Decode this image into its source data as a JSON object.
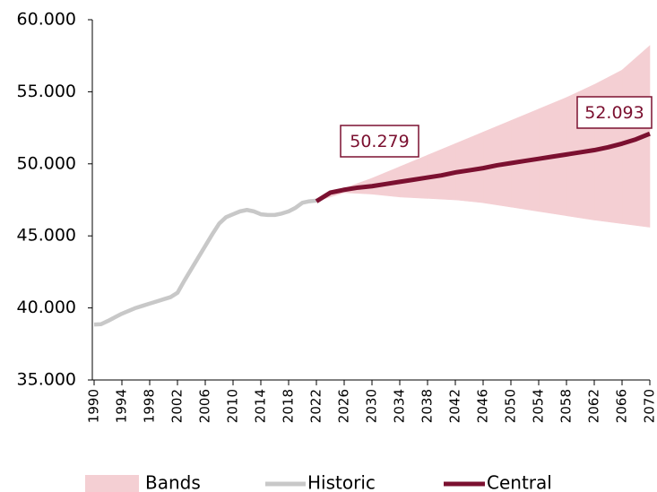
{
  "chart_data": {
    "type": "line",
    "ylim": [
      35,
      60
    ],
    "yticks": [
      {
        "value": 35,
        "label": "35.000"
      },
      {
        "value": 40,
        "label": "40.000"
      },
      {
        "value": 45,
        "label": "45.000"
      },
      {
        "value": 50,
        "label": "50.000"
      },
      {
        "value": 55,
        "label": "55.000"
      },
      {
        "value": 60,
        "label": "60.000"
      }
    ],
    "xlim": [
      1990,
      2070
    ],
    "xticks": [
      1990,
      1994,
      1998,
      2002,
      2006,
      2010,
      2014,
      2018,
      2022,
      2026,
      2030,
      2034,
      2038,
      2042,
      2046,
      2050,
      2054,
      2058,
      2062,
      2066,
      2070
    ],
    "series": [
      {
        "name": "Bands",
        "color": "#f4cfd3",
        "x": [
          2022,
          2026,
          2030,
          2034,
          2038,
          2042,
          2046,
          2050,
          2054,
          2058,
          2062,
          2066,
          2070
        ],
        "upper": [
          47.4,
          48.3,
          49.0,
          49.8,
          50.6,
          51.4,
          52.2,
          53.0,
          53.8,
          54.6,
          55.5,
          56.5,
          58.2
        ],
        "lower": [
          47.4,
          48.0,
          47.9,
          47.7,
          47.6,
          47.5,
          47.3,
          47.0,
          46.7,
          46.4,
          46.1,
          45.85,
          45.6
        ]
      },
      {
        "name": "Historic",
        "color": "#c8c8c8",
        "x": [
          1990,
          1991,
          1992,
          1993,
          1994,
          1995,
          1996,
          1997,
          1998,
          1999,
          2000,
          2001,
          2002,
          2003,
          2004,
          2005,
          2006,
          2007,
          2008,
          2009,
          2010,
          2011,
          2012,
          2013,
          2014,
          2015,
          2016,
          2017,
          2018,
          2019,
          2020,
          2021,
          2022
        ],
        "values": [
          38.85,
          38.87,
          39.1,
          39.35,
          39.6,
          39.8,
          40.0,
          40.15,
          40.3,
          40.45,
          40.6,
          40.75,
          41.05,
          41.9,
          42.7,
          43.5,
          44.3,
          45.1,
          45.85,
          46.3,
          46.5,
          46.7,
          46.8,
          46.7,
          46.5,
          46.45,
          46.45,
          46.55,
          46.7,
          46.95,
          47.3,
          47.4,
          47.45
        ]
      },
      {
        "name": "Central",
        "color": "#7b1030",
        "x": [
          2022,
          2024,
          2026,
          2028,
          2030,
          2032,
          2034,
          2036,
          2038,
          2040,
          2042,
          2044,
          2046,
          2048,
          2050,
          2052,
          2054,
          2056,
          2058,
          2060,
          2062,
          2064,
          2066,
          2068,
          2070
        ],
        "values": [
          47.4,
          48.0,
          48.2,
          48.35,
          48.45,
          48.6,
          48.75,
          48.9,
          49.05,
          49.2,
          49.4,
          49.55,
          49.7,
          49.9,
          50.05,
          50.2,
          50.35,
          50.5,
          50.65,
          50.8,
          50.95,
          51.15,
          51.4,
          51.7,
          52.09
        ]
      }
    ],
    "annotations": [
      {
        "text": "50.279"
      },
      {
        "text": "52.093"
      }
    ]
  }
}
